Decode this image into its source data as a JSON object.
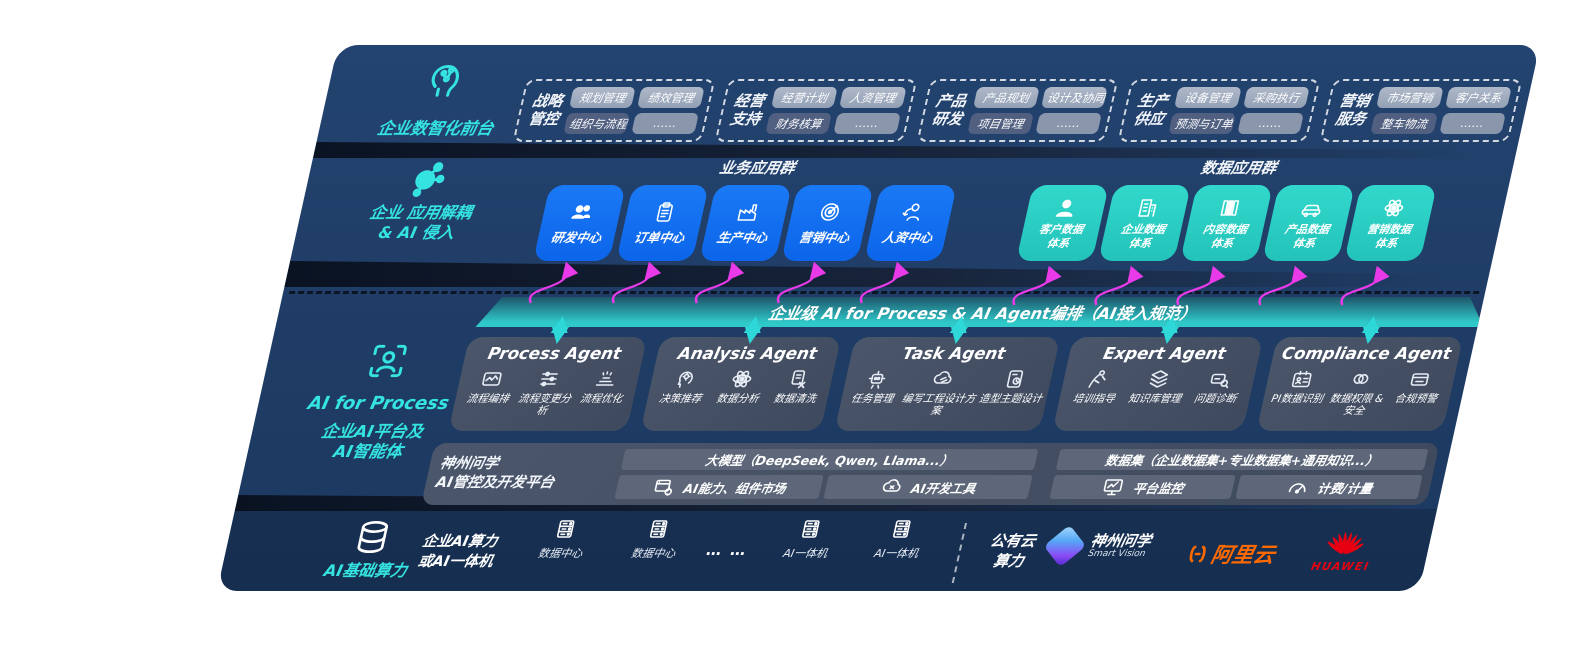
{
  "colors": {
    "slab_navy": "#1f3d66",
    "accent_teal": "#35e3e0",
    "tile_blue": "#0e6ff2",
    "tile_teal": "#2bd3c6",
    "bus_teal": "#2fc9c9",
    "arrow_magenta": "#e83ae8",
    "card_slate": "#46516a",
    "aliyun_orange": "#ff6a00",
    "huawei_red": "#e60012"
  },
  "front": {
    "label": "企业数智化前台",
    "icon": "brain-head-icon",
    "groups": [
      {
        "name_lines": [
          "战略",
          "管控"
        ],
        "tags": [
          "规划管理",
          "绩效管理",
          "组织与流程",
          "……"
        ]
      },
      {
        "name_lines": [
          "经营",
          "支持"
        ],
        "tags": [
          "经营计划",
          "人资管理",
          "财务核算",
          "……"
        ]
      },
      {
        "name_lines": [
          "产品",
          "研发"
        ],
        "tags": [
          "产品规划",
          "设计及协同",
          "项目管理",
          "……"
        ]
      },
      {
        "name_lines": [
          "生产",
          "供应"
        ],
        "tags": [
          "设备管理",
          "采购执行",
          "预测与订单",
          "……"
        ]
      },
      {
        "name_lines": [
          "营销",
          "服务"
        ],
        "tags": [
          "市场营销",
          "客户关系",
          "整车物流",
          "……"
        ]
      }
    ]
  },
  "decouple": {
    "icon": "molecule-icon",
    "label_lines": [
      "企业 应用解耦",
      "& AI 侵入"
    ]
  },
  "apps": {
    "business_title": "业务应用群",
    "data_title": "数据应用群",
    "business": [
      {
        "label": "研发中心",
        "icon": "team-icon"
      },
      {
        "label": "订单中心",
        "icon": "clipboard-icon"
      },
      {
        "label": "生产中心",
        "icon": "factory-icon"
      },
      {
        "label": "营销中心",
        "icon": "target-icon"
      },
      {
        "label": "人资中心",
        "icon": "hr-icon"
      }
    ],
    "data": [
      {
        "lines": [
          "客户数据",
          "体系"
        ],
        "icon": "person-icon"
      },
      {
        "lines": [
          "企业数据",
          "体系"
        ],
        "icon": "building-icon"
      },
      {
        "lines": [
          "内容数据",
          "体系"
        ],
        "icon": "library-icon"
      },
      {
        "lines": [
          "产品数据",
          "体系"
        ],
        "icon": "car-icon"
      },
      {
        "lines": [
          "营销数据",
          "体系"
        ],
        "icon": "atom-icon"
      }
    ]
  },
  "ai_bus": {
    "label": "企业级 AI for Process & AI Agent编排（AI接入规范）"
  },
  "ai_rail": {
    "icon": "scan-person-icon",
    "label_lines": [
      "AI for Process",
      "企业AI平台及",
      "AI智能体"
    ]
  },
  "agents": [
    {
      "title": "Process Agent",
      "items": [
        {
          "label": "流程编排",
          "icon": "workflow-icon"
        },
        {
          "label": "流程变更分析",
          "icon": "sliders-icon"
        },
        {
          "label": "流程优化",
          "icon": "optimize-icon"
        }
      ]
    },
    {
      "title": "Analysis Agent",
      "items": [
        {
          "label": "决策推荐",
          "icon": "decision-head-icon"
        },
        {
          "label": "数据分析",
          "icon": "atom-icon"
        },
        {
          "label": "数据清洗",
          "icon": "clean-data-icon"
        }
      ]
    },
    {
      "title": "Task Agent",
      "items": [
        {
          "label": "任务管理",
          "icon": "robot-icon"
        },
        {
          "label": "编写工程设计方案",
          "icon": "cloud-edit-icon"
        },
        {
          "label": "造型主题设计",
          "icon": "design-board-icon"
        }
      ]
    },
    {
      "title": "Expert Agent",
      "items": [
        {
          "label": "培训指导",
          "icon": "training-icon"
        },
        {
          "label": "知识库管理",
          "icon": "layers-icon"
        },
        {
          "label": "问题诊断",
          "icon": "diagnose-icon"
        }
      ]
    },
    {
      "title": "Compliance Agent",
      "items": [
        {
          "label": "PI数据识别",
          "icon": "id-card-icon"
        },
        {
          "label": "数据权限 & 安全",
          "icon": "rings-icon"
        },
        {
          "label": "合规预警",
          "icon": "mail-alert-icon"
        }
      ]
    }
  ],
  "platform": {
    "name_lines": [
      "神州问学",
      "AI管控及开发平台"
    ],
    "model_bar": "大模型（DeepSeek, Qwen, Llama...）",
    "left_chips": [
      {
        "label": "AI能力、组件市场",
        "icon": "app-market-icon"
      },
      {
        "label": "AI开发工具",
        "icon": "dev-tools-icon"
      }
    ],
    "data_bar": "数据集（企业数据集+专业数据集+通用知识...）",
    "right_chips": [
      {
        "label": "平台监控",
        "icon": "monitor-icon"
      },
      {
        "label": "计费/计量",
        "icon": "gauge-icon"
      }
    ]
  },
  "infra": {
    "label": "AI基础算力",
    "icon": "database-icon",
    "onprem_lines": [
      "企业AI算力",
      "或AI一体机"
    ],
    "ellipsis": "… …",
    "nodes": [
      {
        "label": "数据中心",
        "icon": "server-rack-icon"
      },
      {
        "label": "数据中心",
        "icon": "server-rack-icon"
      },
      {
        "label": "AI一体机",
        "icon": "server-rack-icon"
      },
      {
        "label": "AI一体机",
        "icon": "server-rack-icon"
      }
    ],
    "public_cloud_lines": [
      "公有云",
      "算力"
    ],
    "vendors": [
      {
        "name": "神州问学",
        "sub": "Smart Vision"
      },
      {
        "name": "阿里云"
      },
      {
        "name": "HUAWEI"
      }
    ]
  }
}
